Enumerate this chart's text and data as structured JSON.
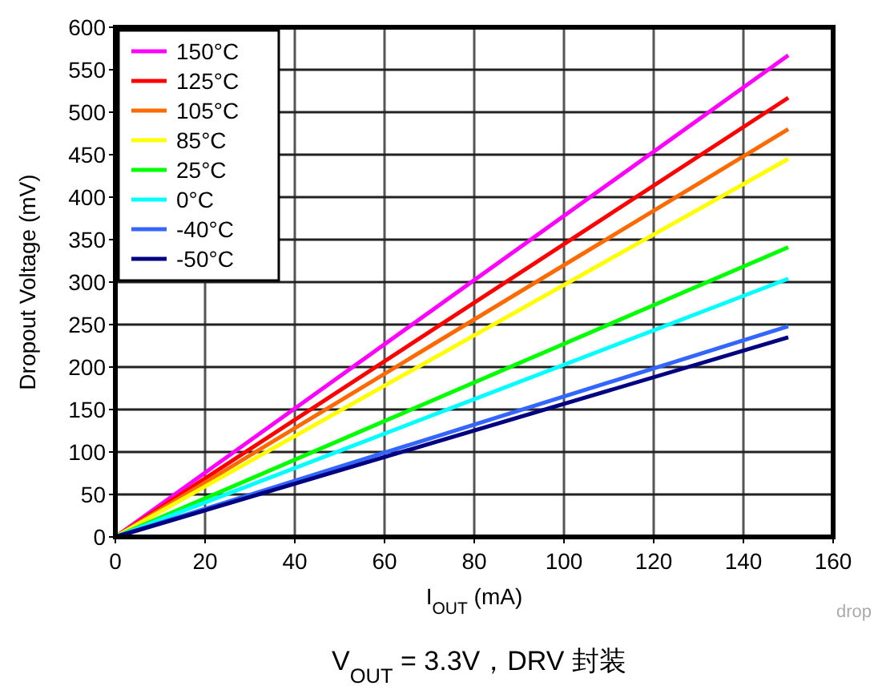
{
  "chart_data": {
    "type": "line",
    "xlabel": "I$_{OUT}$ (mA)",
    "ylabel": "Dropout Voltage (mV)",
    "x": [
      0,
      150
    ],
    "xlim": [
      0,
      160
    ],
    "xticks": [
      0,
      20,
      40,
      60,
      80,
      100,
      120,
      140,
      160
    ],
    "ylim": [
      0,
      600
    ],
    "yticks": [
      0,
      50,
      100,
      150,
      200,
      250,
      300,
      350,
      400,
      450,
      500,
      550,
      600
    ],
    "grid": true,
    "legend": "top left",
    "marker": "none",
    "line_style": "solid",
    "series": [
      {
        "name": "150°C",
        "color": "#ff00ff",
        "values": [
          0,
          567
        ]
      },
      {
        "name": "125°C",
        "color": "#ff0000",
        "values": [
          0,
          517
        ]
      },
      {
        "name": "105°C",
        "color": "#ff6a00",
        "values": [
          0,
          480
        ]
      },
      {
        "name": "85°C",
        "color": "#ffff00",
        "values": [
          0,
          445
        ]
      },
      {
        "name": "25°C",
        "color": "#00ff00",
        "values": [
          0,
          341
        ]
      },
      {
        "name": "0°C",
        "color": "#00ffff",
        "values": [
          0,
          304
        ]
      },
      {
        "name": "-40°C",
        "color": "#3366ff",
        "values": [
          0,
          248
        ]
      },
      {
        "name": "-50°C",
        "color": "#000080",
        "values": [
          0,
          235
        ]
      }
    ],
    "annotations": [
      "drop",
      "V$_{OUT}$ = 3.3V，DRV 封装"
    ]
  }
}
